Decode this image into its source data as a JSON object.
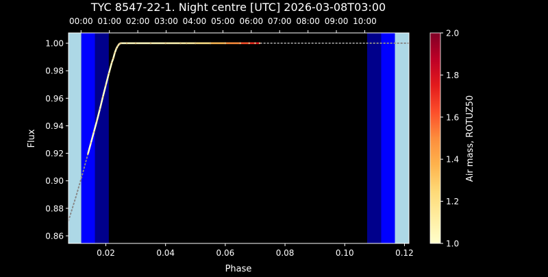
{
  "chart_data": {
    "type": "line",
    "title": "TYC 8547-22-1. Night centre [UTC] 2026-03-08T03:00",
    "xlabel": "Phase",
    "ylabel": "Flux",
    "xlim": [
      0.0075,
      0.1215
    ],
    "ylim": [
      0.8545,
      1.0075
    ],
    "x_ticks": [
      0.02,
      0.04,
      0.06,
      0.08,
      0.1,
      0.12
    ],
    "x_tick_labels": [
      "0.02",
      "0.04",
      "0.06",
      "0.08",
      "0.10",
      "0.12"
    ],
    "y_ticks": [
      0.86,
      0.88,
      0.9,
      0.92,
      0.94,
      0.96,
      0.98,
      1.0
    ],
    "y_tick_labels": [
      "0.86",
      "0.88",
      "0.90",
      "0.92",
      "0.94",
      "0.96",
      "0.98",
      "1.00"
    ],
    "top_axis": {
      "ticks": [
        0.0117,
        0.0212,
        0.0307,
        0.0402,
        0.0497,
        0.0592,
        0.0687,
        0.0782,
        0.0877,
        0.0972,
        0.1067
      ],
      "labels": [
        "00:00",
        "01:00",
        "02:00",
        "03:00",
        "04:00",
        "05:00",
        "06:00",
        "07:00",
        "08:00",
        "09:00",
        "10:00"
      ]
    },
    "twilight_bands": [
      {
        "from": 0.0075,
        "to": 0.0118,
        "color": "#add8e6"
      },
      {
        "from": 0.0118,
        "to": 0.0164,
        "color": "#0000ff"
      },
      {
        "from": 0.0164,
        "to": 0.021,
        "color": "#00008b"
      },
      {
        "from": 0.1075,
        "to": 0.1122,
        "color": "#00008b"
      },
      {
        "from": 0.1122,
        "to": 0.1168,
        "color": "#0000ff"
      },
      {
        "from": 0.1168,
        "to": 0.1215,
        "color": "#add8e6"
      }
    ],
    "model_curve": {
      "style": "dotted",
      "color": "#888888",
      "x": [
        0.0075,
        0.01,
        0.012,
        0.014,
        0.016,
        0.018,
        0.02,
        0.022,
        0.023,
        0.024,
        0.025,
        0.03,
        0.05,
        0.08,
        0.1215
      ],
      "y": [
        0.871,
        0.8885,
        0.9035,
        0.9195,
        0.9355,
        0.952,
        0.9695,
        0.986,
        0.993,
        0.998,
        1.0,
        1.0,
        1.0,
        1.0,
        1.0
      ]
    },
    "observed_series": {
      "x": [
        0.014,
        0.015,
        0.016,
        0.017,
        0.018,
        0.019,
        0.02,
        0.021,
        0.022,
        0.0225,
        0.023,
        0.0235,
        0.024,
        0.0245,
        0.025,
        0.027,
        0.03,
        0.035,
        0.04,
        0.045,
        0.047,
        0.05,
        0.055,
        0.06,
        0.065,
        0.068,
        0.07,
        0.0715
      ],
      "y": [
        0.9195,
        0.9275,
        0.9355,
        0.9435,
        0.952,
        0.961,
        0.9695,
        0.978,
        0.986,
        0.989,
        0.993,
        0.996,
        0.998,
        0.9995,
        1.0,
        1.0,
        1.0,
        1.0,
        1.0,
        1.0,
        1.0,
        1.0,
        1.0,
        1.0,
        1.0,
        1.0,
        1.0,
        1.0
      ],
      "airmass": [
        1.0,
        1.0,
        1.0,
        1.0,
        1.0,
        1.0,
        1.01,
        1.01,
        1.01,
        1.01,
        1.02,
        1.02,
        1.02,
        1.02,
        1.02,
        1.03,
        1.03,
        1.05,
        1.07,
        1.1,
        1.12,
        1.2,
        1.35,
        1.5,
        1.62,
        1.7,
        1.78,
        1.85
      ]
    },
    "colorbar": {
      "label": "Air mass, ROTUZ50",
      "range": [
        1.0,
        2.0
      ],
      "ticks": [
        1.0,
        1.2,
        1.4,
        1.6,
        1.8,
        2.0
      ],
      "tick_labels": [
        "1.0",
        "1.2",
        "1.4",
        "1.6",
        "1.8",
        "2.0"
      ],
      "colormap": "YlOrRd"
    },
    "background": "#000000",
    "grid": false,
    "legend": "none"
  }
}
